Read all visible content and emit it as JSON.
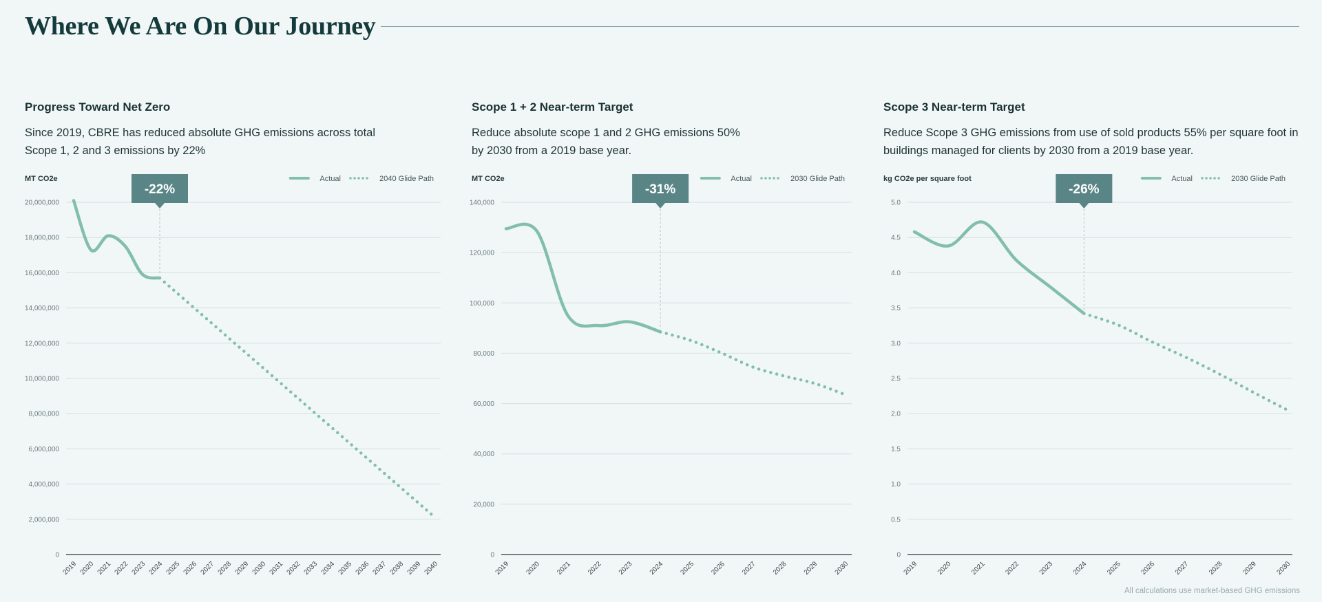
{
  "page": {
    "title": "Where We Are On Our Journey",
    "footnote": "All calculations use market-based GHG emissions"
  },
  "colors": {
    "series": "#82bfaa",
    "badge": "#5a8586",
    "grid": "#d6e0e0",
    "axis_text": "#6b7b7b"
  },
  "panels": [
    {
      "heading": "Progress Toward Net Zero",
      "desc_lines": [
        "Since 2019, CBRE has reduced absolute GHG emissions across total",
        "Scope 1, 2 and 3 emissions by 22%"
      ]
    },
    {
      "heading": "Scope 1 + 2 Near-term Target",
      "desc_lines": [
        "Reduce absolute scope 1 and 2 GHG emissions 50%",
        "by 2030 from a 2019 base year."
      ]
    },
    {
      "heading": "Scope 3 Near-term Target",
      "desc_lines": [
        "Reduce Scope 3 GHG emissions from use of sold products 55% per square foot in",
        "buildings managed for clients by 2030 from a 2019 base year."
      ]
    }
  ],
  "chart_data": [
    {
      "type": "line",
      "ylabel": "MT CO2e",
      "ylim": [
        0,
        20000000
      ],
      "yticks": [
        0,
        2000000,
        4000000,
        6000000,
        8000000,
        10000000,
        12000000,
        14000000,
        16000000,
        18000000,
        20000000
      ],
      "ytick_labels": [
        "0",
        "2,000,000",
        "4,000,000",
        "6,000,000",
        "8,000,000",
        "10,000,000",
        "12,000,000",
        "14,000,000",
        "16,000,000",
        "18,000,000",
        "20,000,000"
      ],
      "categories": [
        "2019",
        "2020",
        "2021",
        "2022",
        "2023",
        "2024",
        "2025",
        "2026",
        "2027",
        "2028",
        "2029",
        "2030",
        "2031",
        "2032",
        "2033",
        "2034",
        "2035",
        "2036",
        "2037",
        "2038",
        "2039",
        "2040"
      ],
      "series": [
        {
          "name": "Actual",
          "style": "solid",
          "x": [
            "2019",
            "2020",
            "2021",
            "2022",
            "2023",
            "2024"
          ],
          "values": [
            20100000,
            17300000,
            18100000,
            17500000,
            15900000,
            15700000
          ]
        },
        {
          "name": "2040 Glide Path",
          "style": "dotted",
          "x": [
            "2024",
            "2040"
          ],
          "values": [
            15700000,
            2100000
          ]
        }
      ],
      "annotation": {
        "label": "-22%",
        "x": "2024",
        "value": 15700000
      },
      "grid": true,
      "legend": "top-right"
    },
    {
      "type": "line",
      "ylabel": "MT CO2e",
      "ylim": [
        0,
        140000
      ],
      "yticks": [
        0,
        20000,
        40000,
        60000,
        80000,
        100000,
        120000,
        140000
      ],
      "ytick_labels": [
        "0",
        "20,000",
        "40,000",
        "60,000",
        "80,000",
        "100,000",
        "120,000",
        "140,000"
      ],
      "categories": [
        "2019",
        "2020",
        "2021",
        "2022",
        "2023",
        "2024",
        "2025",
        "2026",
        "2027",
        "2028",
        "2029",
        "2030"
      ],
      "series": [
        {
          "name": "Actual",
          "style": "solid",
          "x": [
            "2019",
            "2020",
            "2021",
            "2022",
            "2023",
            "2024"
          ],
          "values": [
            129500,
            128500,
            95000,
            91000,
            92500,
            88500
          ]
        },
        {
          "name": "2030 Glide Path",
          "style": "dotted",
          "x": [
            "2024",
            "2025",
            "2026",
            "2027",
            "2028",
            "2029",
            "2030"
          ],
          "values": [
            88500,
            85000,
            80000,
            74500,
            71000,
            68000,
            63500
          ]
        }
      ],
      "annotation": {
        "label": "-31%",
        "x": "2024",
        "value": 88500
      },
      "grid": true,
      "legend": "top-right"
    },
    {
      "type": "line",
      "ylabel": "kg CO2e per square foot",
      "ylim": [
        0,
        5.0
      ],
      "yticks": [
        0,
        0.5,
        1.0,
        1.5,
        2.0,
        2.5,
        3.0,
        3.5,
        4.0,
        4.5,
        5.0
      ],
      "ytick_labels": [
        "0",
        "0.5",
        "1.0",
        "1.5",
        "2.0",
        "2.5",
        "3.0",
        "3.5",
        "4.0",
        "4.5",
        "5.0"
      ],
      "categories": [
        "2019",
        "2020",
        "2021",
        "2022",
        "2023",
        "2024",
        "2025",
        "2026",
        "2027",
        "2028",
        "2029",
        "2030"
      ],
      "series": [
        {
          "name": "Actual",
          "style": "solid",
          "x": [
            "2019",
            "2020",
            "2021",
            "2022",
            "2023",
            "2024"
          ],
          "values": [
            4.58,
            4.38,
            4.72,
            4.18,
            3.8,
            3.42
          ]
        },
        {
          "name": "2030 Glide Path",
          "style": "dotted",
          "x": [
            "2024",
            "2025",
            "2026",
            "2027",
            "2028",
            "2029",
            "2030"
          ],
          "values": [
            3.42,
            3.26,
            3.02,
            2.8,
            2.56,
            2.3,
            2.05
          ]
        }
      ],
      "annotation": {
        "label": "-26%",
        "x": "2024",
        "value": 3.42
      },
      "grid": true,
      "legend": "top-right"
    }
  ]
}
